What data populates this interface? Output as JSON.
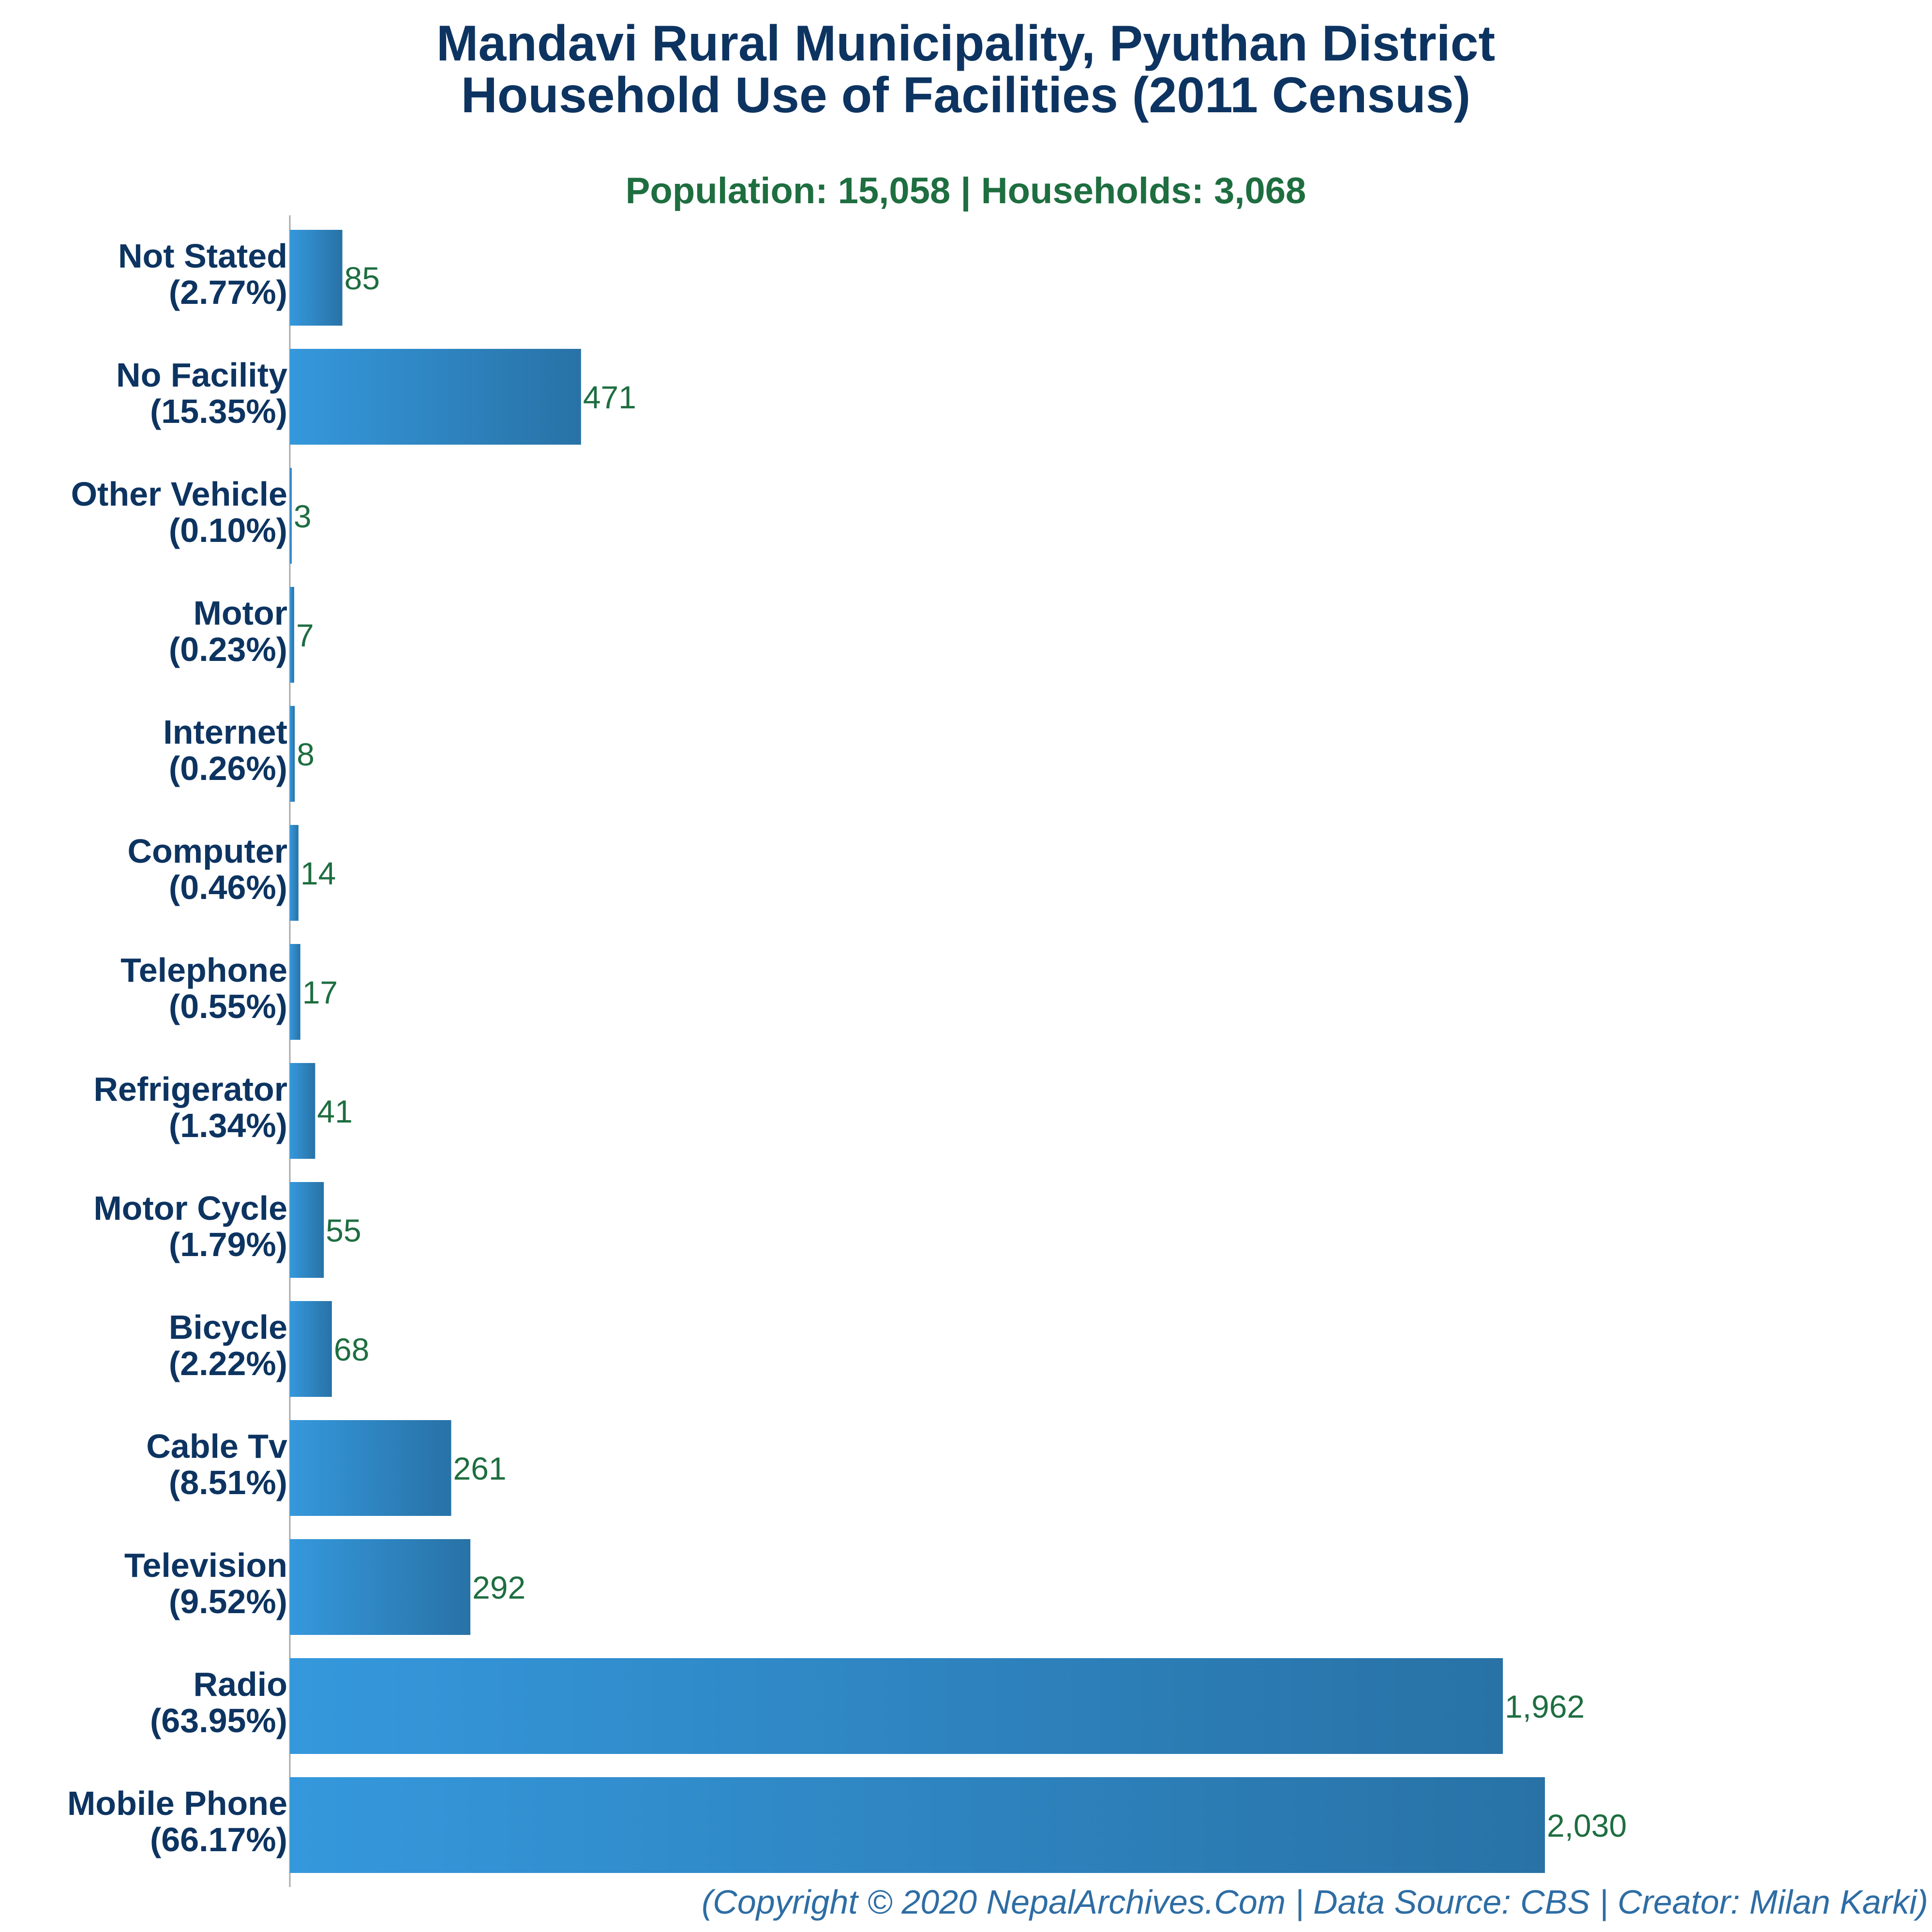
{
  "chart_data": {
    "type": "bar",
    "orientation": "horizontal",
    "title_line1": "Mandavi Rural Municipality, Pyuthan District",
    "title_line2": "Household Use of Facilities (2011 Census)",
    "subtitle": "Population: 15,058 | Households: 3,068",
    "categories": [
      "Not Stated",
      "No Facility",
      "Other Vehicle",
      "Motor",
      "Internet",
      "Computer",
      "Telephone",
      "Refrigerator",
      "Motor Cycle",
      "Bicycle",
      "Cable Tv",
      "Television",
      "Radio",
      "Mobile Phone"
    ],
    "percent_labels": [
      "(2.77%)",
      "(15.35%)",
      "(0.10%)",
      "(0.23%)",
      "(0.26%)",
      "(0.46%)",
      "(0.55%)",
      "(1.34%)",
      "(1.79%)",
      "(2.22%)",
      "(8.51%)",
      "(9.52%)",
      "(63.95%)",
      "(66.17%)"
    ],
    "values": [
      85,
      471,
      3,
      7,
      8,
      14,
      17,
      41,
      55,
      68,
      261,
      292,
      1962,
      2030
    ],
    "value_labels": [
      "85",
      "471",
      "3",
      "7",
      "8",
      "14",
      "17",
      "41",
      "55",
      "68",
      "261",
      "292",
      "1,962",
      "2,030"
    ],
    "xlim": [
      0,
      2030
    ],
    "grid": false,
    "legend": "none",
    "colors": {
      "bar_light": "#3598dc",
      "bar_dark": "#2872a6",
      "title": "#0d3461",
      "subtitle": "#1e6e40",
      "value_label": "#1e6e40",
      "footer": "#2e6da4"
    }
  },
  "footer": "(Copyright © 2020 NepalArchives.Com | Data Source: CBS | Creator: Milan Karki)"
}
